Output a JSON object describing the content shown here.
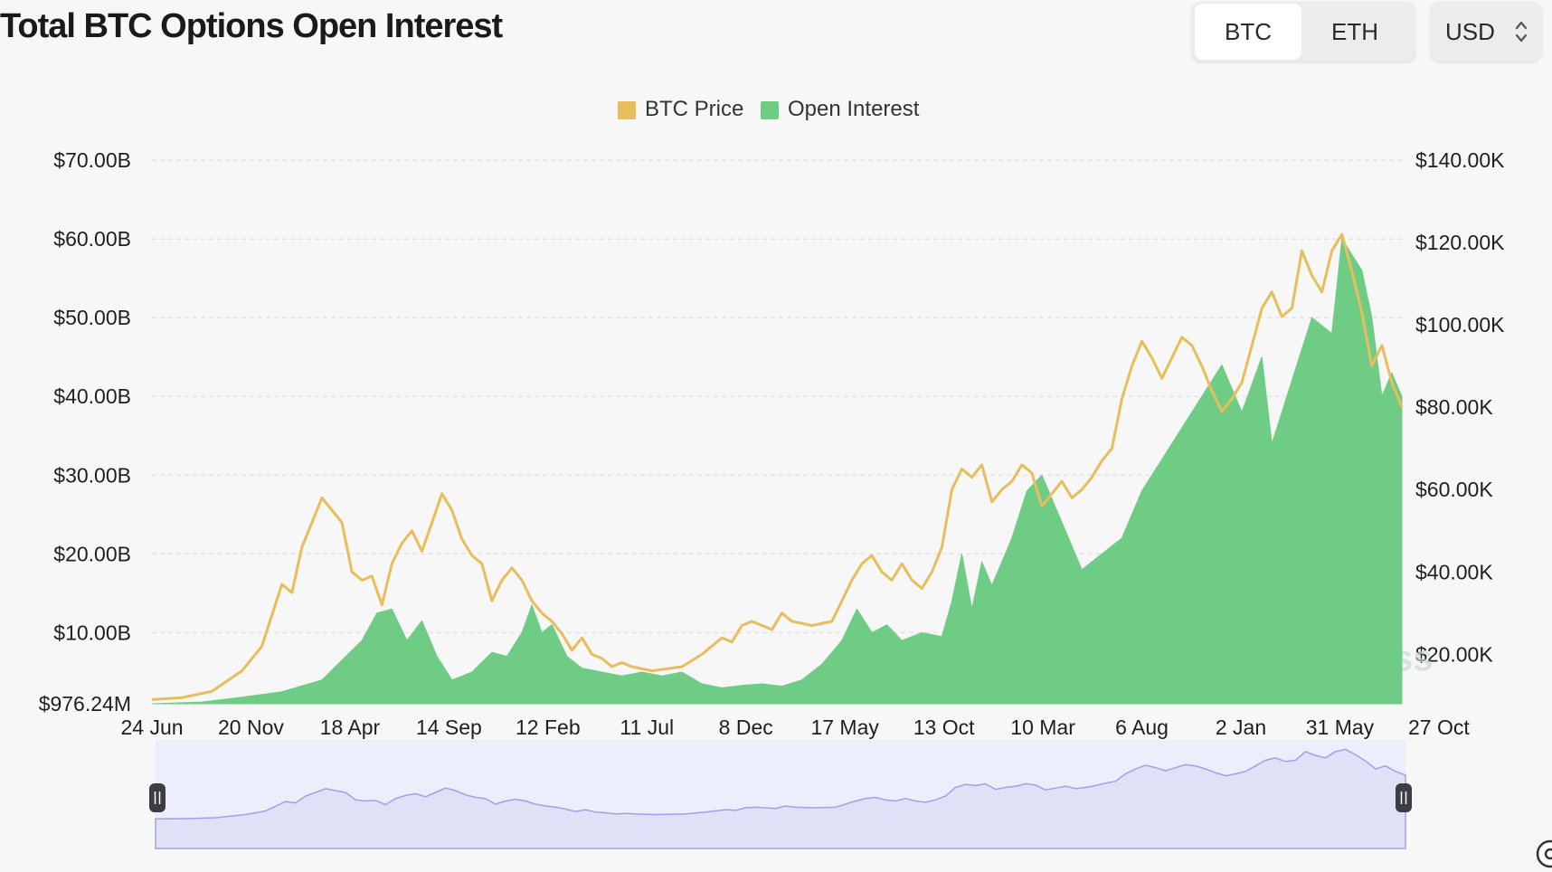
{
  "title": "Total BTC Options Open Interest",
  "asset_toggle": {
    "options": [
      "BTC",
      "ETH"
    ],
    "selected": "BTC"
  },
  "currency_select": {
    "value": "USD",
    "icon": "sort-arrows-icon"
  },
  "watermark": {
    "text": "coinglass",
    "icon": "coinglass-logo-icon"
  },
  "colors": {
    "btc_price": "#e9bd5a",
    "open_interest": "#6ecc85",
    "navigator_fill": "#dfe2f7",
    "navigator_line": "#9aa3ea"
  },
  "chart_data": {
    "type": "area",
    "title": "Total BTC Options Open Interest",
    "legend": {
      "placement": "top-center",
      "entries": [
        "BTC Price",
        "Open Interest"
      ]
    },
    "grid": true,
    "x_ticks": [
      "24 Jun",
      "20 Nov",
      "18 Apr",
      "14 Sep",
      "12 Feb",
      "11 Jul",
      "8 Dec",
      "17 May",
      "13 Oct",
      "10 Mar",
      "6 Aug",
      "2 Jan",
      "31 May",
      "27 Oct"
    ],
    "y_left": {
      "ticks": [
        "$70.00B",
        "$60.00B",
        "$50.00B",
        "$40.00B",
        "$30.00B",
        "$20.00B",
        "$10.00B",
        "$976.24M"
      ],
      "unit": "USD",
      "range": [
        0.97624,
        70
      ]
    },
    "y_right": {
      "ticks": [
        "$140.00K",
        "$120.00K",
        "$100.00K",
        "$80.00K",
        "$60.00K",
        "$40.00K",
        "$20.00K"
      ],
      "unit": "USD",
      "range": [
        8,
        140
      ]
    },
    "series": [
      {
        "name": "Open Interest",
        "type": "area",
        "axis": "left",
        "unit": "billions USD",
        "points": [
          [
            0,
            0.98
          ],
          [
            5,
            1.2
          ],
          [
            9,
            1.8
          ],
          [
            13,
            2.5
          ],
          [
            17,
            4
          ],
          [
            19,
            6.5
          ],
          [
            21,
            9
          ],
          [
            22.5,
            12.5
          ],
          [
            24,
            13
          ],
          [
            25.5,
            9
          ],
          [
            27,
            11.5
          ],
          [
            28.5,
            7
          ],
          [
            30,
            4
          ],
          [
            32,
            5
          ],
          [
            34,
            7.5
          ],
          [
            35.5,
            7
          ],
          [
            37,
            10
          ],
          [
            38,
            13.5
          ],
          [
            39,
            10
          ],
          [
            40,
            11
          ],
          [
            41.5,
            7
          ],
          [
            43,
            5.5
          ],
          [
            45,
            5
          ],
          [
            47,
            4.5
          ],
          [
            49,
            5
          ],
          [
            51,
            4.5
          ],
          [
            53,
            5
          ],
          [
            55,
            3.5
          ],
          [
            57,
            3
          ],
          [
            59,
            3.3
          ],
          [
            61,
            3.5
          ],
          [
            63,
            3.2
          ],
          [
            65,
            4
          ],
          [
            67,
            6
          ],
          [
            69,
            9
          ],
          [
            70.5,
            13
          ],
          [
            72,
            10
          ],
          [
            73.5,
            11
          ],
          [
            75,
            9
          ],
          [
            77,
            10
          ],
          [
            79,
            9.5
          ],
          [
            80,
            14
          ],
          [
            81,
            20
          ],
          [
            82,
            13
          ],
          [
            83,
            19
          ],
          [
            84,
            16
          ],
          [
            86,
            22
          ],
          [
            87.5,
            28
          ],
          [
            89,
            30
          ],
          [
            91,
            24
          ],
          [
            93,
            18
          ],
          [
            95,
            20
          ],
          [
            97,
            22
          ],
          [
            99,
            28
          ],
          [
            101,
            32
          ],
          [
            103,
            36
          ],
          [
            105,
            40
          ],
          [
            107,
            44
          ],
          [
            109,
            38
          ],
          [
            111,
            45
          ],
          [
            112,
            34
          ],
          [
            114,
            42
          ],
          [
            116,
            50
          ],
          [
            118,
            48
          ],
          [
            119,
            60
          ],
          [
            120,
            58
          ],
          [
            121,
            56
          ],
          [
            122,
            50
          ],
          [
            123,
            40
          ],
          [
            124,
            43
          ],
          [
            125,
            40
          ]
        ]
      },
      {
        "name": "BTC Price",
        "type": "line",
        "axis": "right",
        "unit": "thousands USD",
        "points": [
          [
            0,
            9
          ],
          [
            3,
            9.5
          ],
          [
            6,
            11
          ],
          [
            9,
            16
          ],
          [
            11,
            22
          ],
          [
            13,
            37
          ],
          [
            14,
            35
          ],
          [
            15,
            46
          ],
          [
            16,
            52
          ],
          [
            17,
            58
          ],
          [
            18,
            55
          ],
          [
            19,
            52
          ],
          [
            19.5,
            46
          ],
          [
            20,
            40
          ],
          [
            21,
            38
          ],
          [
            22,
            39
          ],
          [
            23,
            32
          ],
          [
            24,
            42
          ],
          [
            25,
            47
          ],
          [
            26,
            50
          ],
          [
            27,
            45
          ],
          [
            28,
            52
          ],
          [
            29,
            59
          ],
          [
            30,
            55
          ],
          [
            31,
            48
          ],
          [
            32,
            44
          ],
          [
            33,
            42
          ],
          [
            34,
            33
          ],
          [
            35,
            38
          ],
          [
            36,
            41
          ],
          [
            37,
            38
          ],
          [
            38,
            33
          ],
          [
            39,
            30
          ],
          [
            40,
            28
          ],
          [
            41,
            25
          ],
          [
            42,
            21
          ],
          [
            43,
            24
          ],
          [
            44,
            20
          ],
          [
            45,
            19
          ],
          [
            46,
            17
          ],
          [
            47,
            18
          ],
          [
            48,
            17
          ],
          [
            50,
            16
          ],
          [
            53,
            17
          ],
          [
            55,
            20
          ],
          [
            56,
            22
          ],
          [
            57,
            24
          ],
          [
            58,
            23
          ],
          [
            59,
            27
          ],
          [
            60,
            28
          ],
          [
            62,
            26
          ],
          [
            63,
            30
          ],
          [
            64,
            28
          ],
          [
            66,
            27
          ],
          [
            68,
            28
          ],
          [
            69,
            33
          ],
          [
            70,
            38
          ],
          [
            71,
            42
          ],
          [
            72,
            44
          ],
          [
            73,
            40
          ],
          [
            74,
            38
          ],
          [
            75,
            42
          ],
          [
            76,
            38
          ],
          [
            77,
            36
          ],
          [
            78,
            40
          ],
          [
            79,
            46
          ],
          [
            80,
            60
          ],
          [
            81,
            65
          ],
          [
            82,
            63
          ],
          [
            83,
            66
          ],
          [
            84,
            57
          ],
          [
            85,
            60
          ],
          [
            86,
            62
          ],
          [
            87,
            66
          ],
          [
            88,
            64
          ],
          [
            89,
            56
          ],
          [
            90,
            59
          ],
          [
            91,
            62
          ],
          [
            92,
            58
          ],
          [
            93,
            60
          ],
          [
            94,
            63
          ],
          [
            95,
            67
          ],
          [
            96,
            70
          ],
          [
            97,
            82
          ],
          [
            98,
            90
          ],
          [
            99,
            96
          ],
          [
            100,
            92
          ],
          [
            101,
            87
          ],
          [
            102,
            92
          ],
          [
            103,
            97
          ],
          [
            104,
            95
          ],
          [
            105,
            90
          ],
          [
            106,
            84
          ],
          [
            107,
            79
          ],
          [
            108,
            82
          ],
          [
            109,
            86
          ],
          [
            110,
            95
          ],
          [
            111,
            104
          ],
          [
            112,
            108
          ],
          [
            113,
            102
          ],
          [
            114,
            104
          ],
          [
            115,
            118
          ],
          [
            116,
            112
          ],
          [
            117,
            108
          ],
          [
            118,
            118
          ],
          [
            119,
            122
          ],
          [
            120,
            113
          ],
          [
            121,
            103
          ],
          [
            122,
            90
          ],
          [
            123,
            95
          ],
          [
            124,
            86
          ],
          [
            125,
            80
          ]
        ]
      }
    ],
    "navigator": {
      "range_start": "24 Jun",
      "range_end": "latest"
    }
  }
}
